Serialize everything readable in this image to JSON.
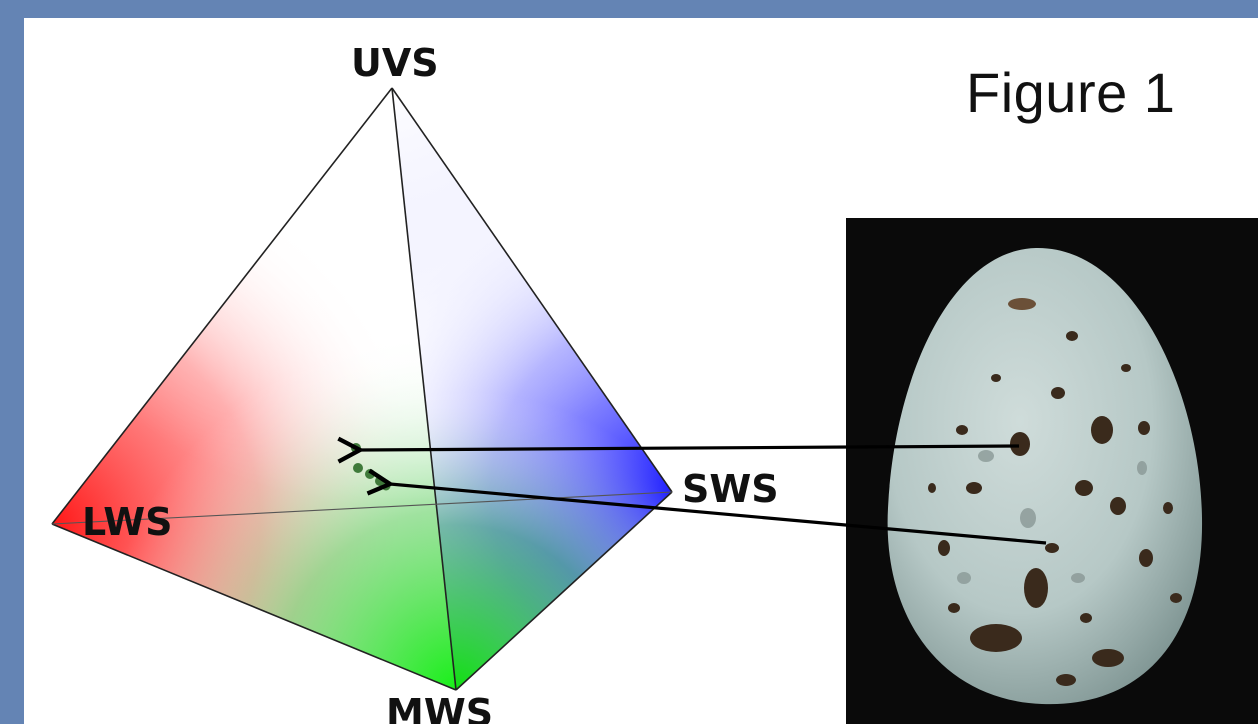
{
  "figure_title": "Figure 1",
  "vertices": {
    "uvs": "UVS",
    "sws": "SWS",
    "lws": "LWS",
    "mws": "MWS"
  },
  "colors": {
    "background_frame": "#6484b4",
    "lws": "#ff2020",
    "mws": "#20ee20",
    "sws": "#2020ff",
    "uvs": "#ffffff",
    "egg_shell": "#b8c9c7",
    "photo_bg": "#0a0a0a"
  },
  "icons": [
    "tetrahedral-color-space",
    "egg-photo",
    "arrow-icon"
  ]
}
